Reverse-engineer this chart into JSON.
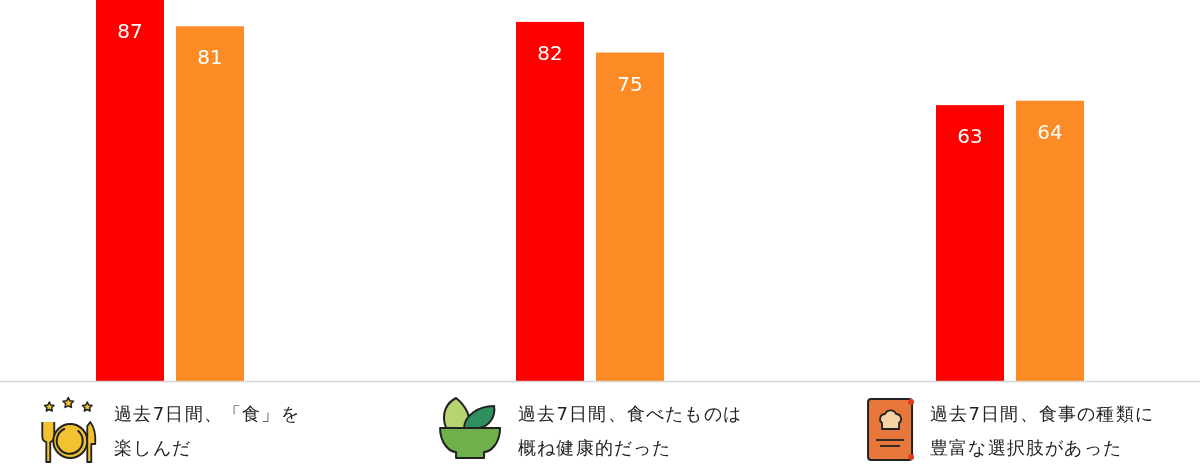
{
  "chart_data": {
    "type": "bar",
    "categories": [
      "過去7日間、「食」を楽しんだ",
      "過去7日間、食べたものは概ね健康的だった",
      "過去7日間、食事の種類に豊富な選択肢があった"
    ],
    "series": [
      {
        "color": "#ff0000",
        "values": [
          87,
          82,
          63
        ]
      },
      {
        "color": "#fd8b25",
        "values": [
          81,
          75,
          64
        ]
      }
    ],
    "data_labels": true
  }
}
